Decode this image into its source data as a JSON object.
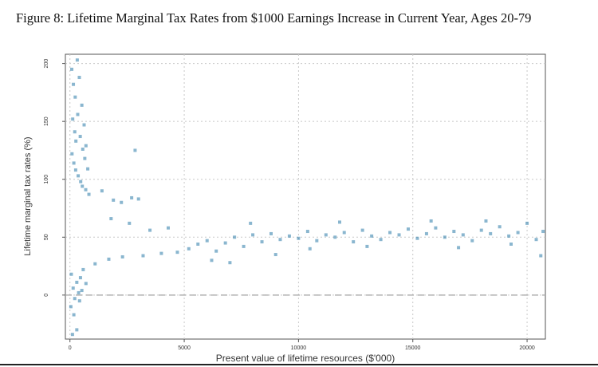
{
  "caption": {
    "text": "Figure 8: Lifetime Marginal Tax Rates from $1000 Earnings Increase in Current Year, Ages 20-79"
  },
  "colors": {
    "point": "#2a7aa8",
    "grid": "#c8c8c8",
    "zero_line": "#b0b0b0",
    "frame": "#555555"
  },
  "chart_data": {
    "type": "scatter",
    "title": "",
    "xlabel": "Present value of lifetime resources ($'000)",
    "ylabel": "Lifetime marginal tax rates (%)",
    "xlim": [
      -200,
      20800
    ],
    "ylim": [
      -38,
      208
    ],
    "x_ticks": [
      0,
      5000,
      10000,
      15000,
      20000
    ],
    "y_ticks": [
      0,
      50,
      100,
      150,
      200
    ],
    "grid": true,
    "reference_line_y": 0,
    "series": [
      {
        "values": [
          [
            80,
            195
          ],
          [
            150,
            182
          ],
          [
            230,
            171
          ],
          [
            320,
            203
          ],
          [
            410,
            188
          ],
          [
            520,
            164
          ],
          [
            620,
            147
          ],
          [
            700,
            129
          ],
          [
            120,
            152
          ],
          [
            210,
            141
          ],
          [
            260,
            133
          ],
          [
            340,
            156
          ],
          [
            450,
            137
          ],
          [
            560,
            126
          ],
          [
            650,
            118
          ],
          [
            780,
            109
          ],
          [
            90,
            122
          ],
          [
            170,
            114
          ],
          [
            250,
            108
          ],
          [
            360,
            103
          ],
          [
            470,
            98
          ],
          [
            540,
            94
          ],
          [
            690,
            91
          ],
          [
            830,
            87
          ],
          [
            2850,
            125
          ],
          [
            2700,
            84
          ],
          [
            1900,
            82
          ],
          [
            2250,
            80
          ],
          [
            1400,
            90
          ],
          [
            3000,
            83
          ],
          [
            60,
            18
          ],
          [
            140,
            6
          ],
          [
            210,
            -3
          ],
          [
            300,
            11
          ],
          [
            380,
            2
          ],
          [
            460,
            15
          ],
          [
            580,
            22
          ],
          [
            700,
            10
          ],
          [
            40,
            -10
          ],
          [
            170,
            -17
          ],
          [
            300,
            -30
          ],
          [
            420,
            -5
          ],
          [
            110,
            -34
          ],
          [
            520,
            4
          ],
          [
            1100,
            27
          ],
          [
            1700,
            31
          ],
          [
            2300,
            33
          ],
          [
            3200,
            34
          ],
          [
            4000,
            36
          ],
          [
            4700,
            37
          ],
          [
            5200,
            40
          ],
          [
            5600,
            44
          ],
          [
            6000,
            47
          ],
          [
            6400,
            38
          ],
          [
            6800,
            45
          ],
          [
            7200,
            50
          ],
          [
            7600,
            42
          ],
          [
            8000,
            52
          ],
          [
            8400,
            46
          ],
          [
            8800,
            53
          ],
          [
            9200,
            48
          ],
          [
            9600,
            51
          ],
          [
            10000,
            49
          ],
          [
            10400,
            55
          ],
          [
            10800,
            47
          ],
          [
            11200,
            52
          ],
          [
            11600,
            50
          ],
          [
            12000,
            54
          ],
          [
            12400,
            46
          ],
          [
            12800,
            56
          ],
          [
            13200,
            51
          ],
          [
            13600,
            48
          ],
          [
            14000,
            54
          ],
          [
            14400,
            52
          ],
          [
            14800,
            57
          ],
          [
            15200,
            49
          ],
          [
            15600,
            53
          ],
          [
            16000,
            58
          ],
          [
            16400,
            50
          ],
          [
            16800,
            55
          ],
          [
            17200,
            52
          ],
          [
            17600,
            47
          ],
          [
            18000,
            56
          ],
          [
            18400,
            53
          ],
          [
            18800,
            59
          ],
          [
            19200,
            51
          ],
          [
            19600,
            54
          ],
          [
            20000,
            62
          ],
          [
            20400,
            48
          ],
          [
            20700,
            55
          ],
          [
            6200,
            30
          ],
          [
            7000,
            28
          ],
          [
            7900,
            62
          ],
          [
            9000,
            35
          ],
          [
            10500,
            40
          ],
          [
            11800,
            63
          ],
          [
            13000,
            42
          ],
          [
            15800,
            64
          ],
          [
            17000,
            41
          ],
          [
            18200,
            64
          ],
          [
            19300,
            44
          ],
          [
            20600,
            34
          ],
          [
            3500,
            56
          ],
          [
            4300,
            58
          ],
          [
            2600,
            62
          ],
          [
            1800,
            66
          ]
        ]
      }
    ]
  }
}
